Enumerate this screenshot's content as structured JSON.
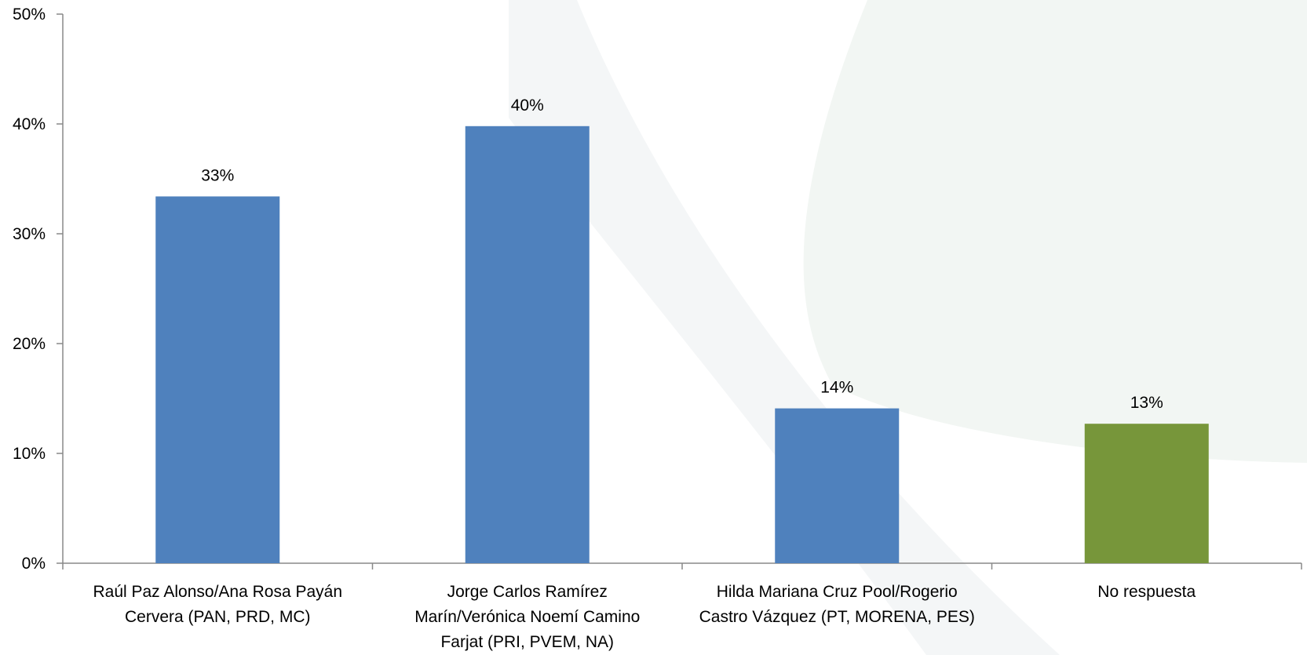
{
  "chart_data": {
    "type": "bar",
    "categories": [
      [
        "Raúl Paz Alonso/Ana Rosa Payán",
        "Cervera (PAN, PRD, MC)"
      ],
      [
        "Jorge Carlos Ramírez",
        "Marín/Verónica Noemí Camino",
        "Farjat (PRI, PVEM, NA)"
      ],
      [
        "Hilda Mariana Cruz Pool/Rogerio",
        "Castro Vázquez (PT, MORENA, PES)"
      ],
      [
        "No respuesta"
      ]
    ],
    "values": [
      33.4,
      39.8,
      14.1,
      12.7
    ],
    "data_labels": [
      "33%",
      "40%",
      "14%",
      "13%"
    ],
    "bar_colors": [
      "#4f81bd",
      "#4f81bd",
      "#4f81bd",
      "#77963a"
    ],
    "title": "",
    "xlabel": "",
    "ylabel": "",
    "ylim": [
      0,
      50
    ],
    "yticks": [
      0,
      10,
      20,
      30,
      40,
      50
    ],
    "ytick_labels": [
      "0%",
      "10%",
      "20%",
      "30%",
      "40%",
      "50%"
    ],
    "grid": false,
    "legend": "none"
  },
  "colors": {
    "axis": "#898989",
    "watermark_light": "#f4f6f7",
    "watermark_green": "#f2f6f3"
  }
}
